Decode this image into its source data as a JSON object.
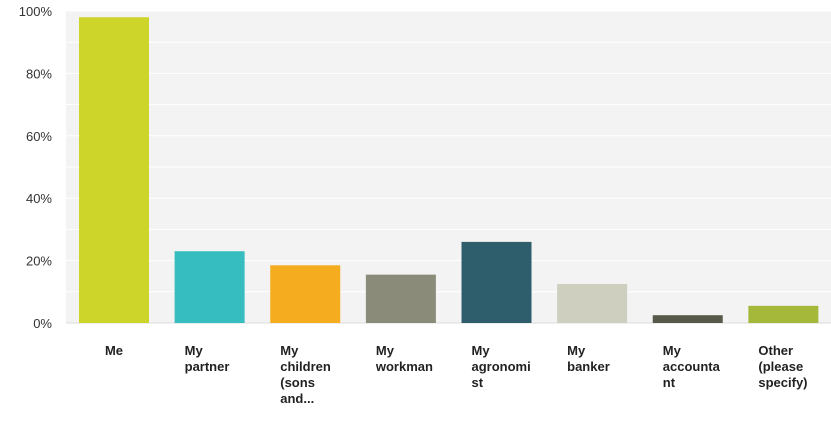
{
  "chart_data": {
    "type": "bar",
    "categories": [
      [
        "Me"
      ],
      [
        "My",
        "partner"
      ],
      [
        "My",
        "children",
        "(sons",
        "and..."
      ],
      [
        "My",
        "workman"
      ],
      [
        "My",
        "agronomi",
        "st"
      ],
      [
        "My",
        "banker"
      ],
      [
        "My",
        "accounta",
        "nt"
      ],
      [
        "Other",
        "(please",
        "specify)"
      ]
    ],
    "values": [
      98,
      23,
      18.5,
      15.5,
      26,
      12.5,
      2.5,
      5.5
    ],
    "colors": [
      "#cdd52a",
      "#36bdc0",
      "#f5ad1f",
      "#8a8b78",
      "#2e5e6b",
      "#cfcfc0",
      "#575a49",
      "#a5b83a"
    ],
    "yticks": [
      "0%",
      "20%",
      "40%",
      "60%",
      "80%",
      "100%"
    ],
    "ylim": [
      0,
      100
    ],
    "grid": true,
    "background": "#f3f3f3"
  }
}
